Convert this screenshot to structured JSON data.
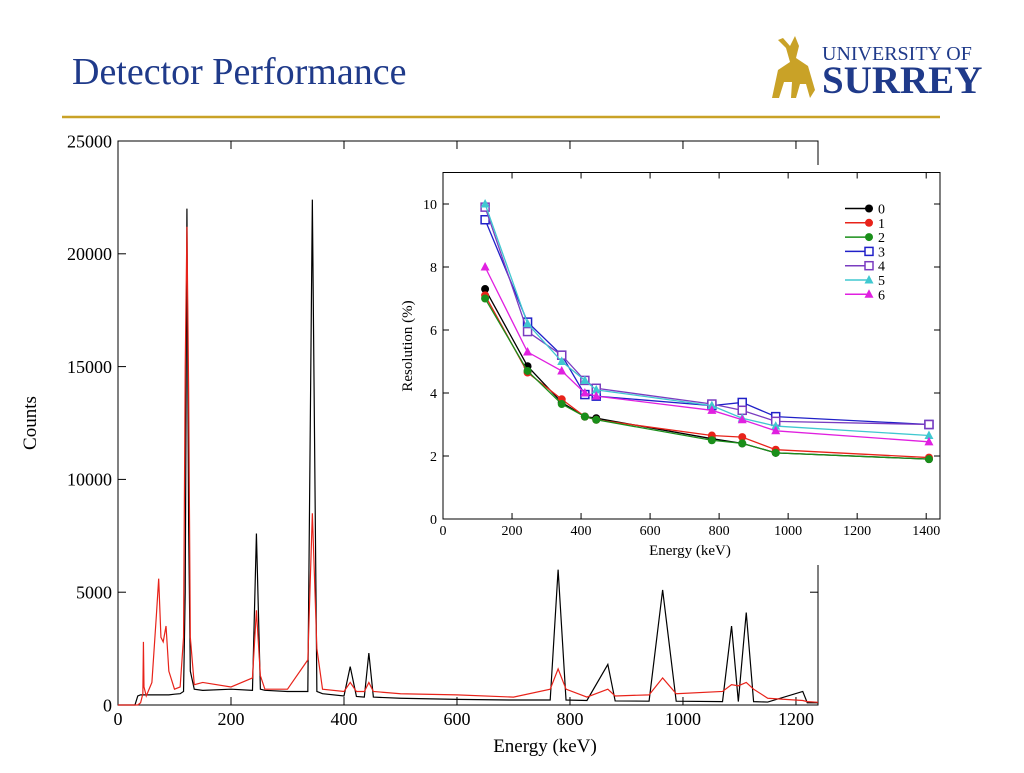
{
  "header": {
    "title": "Detector Performance",
    "logo_top": "UNIVERSITY OF",
    "logo_bottom": "SURREY"
  },
  "chart_data": [
    {
      "type": "line",
      "xlabel": "Energy (keV)",
      "ylabel": "Counts",
      "x": [
        0,
        30,
        35,
        40,
        44,
        45,
        46,
        50,
        60,
        68,
        72,
        76,
        80,
        85,
        90,
        100,
        110,
        116,
        119,
        122,
        125,
        128,
        135,
        150,
        200,
        238,
        245,
        252,
        260,
        300,
        336,
        344,
        352,
        362,
        400,
        411,
        422,
        436,
        444,
        452,
        500,
        600,
        700,
        765,
        779,
        793,
        830,
        867,
        880,
        940,
        964,
        988,
        1070,
        1086,
        1098,
        1112,
        1125,
        1150,
        1212,
        1220,
        1239
      ],
      "series": [
        {
          "color": "#000000",
          "values": [
            0,
            0,
            400,
            450,
            450,
            450,
            450,
            450,
            450,
            450,
            450,
            450,
            450,
            450,
            450,
            480,
            500,
            600,
            5000,
            22000,
            8000,
            1500,
            700,
            650,
            700,
            650,
            7600,
            700,
            650,
            600,
            600,
            22400,
            600,
            500,
            400,
            1700,
            380,
            350,
            2300,
            350,
            300,
            250,
            220,
            220,
            6000,
            220,
            200,
            1800,
            180,
            170,
            5100,
            170,
            150,
            3500,
            150,
            4100,
            150,
            130,
            600,
            100,
            100
          ]
        },
        {
          "color": "#e8231a",
          "values": [
            0,
            0,
            0,
            100,
            500,
            2800,
            800,
            400,
            1000,
            4000,
            5600,
            3000,
            2800,
            3500,
            1500,
            700,
            800,
            3000,
            15000,
            21200,
            14000,
            3000,
            900,
            1000,
            800,
            1200,
            4200,
            1300,
            700,
            700,
            2000,
            8500,
            2500,
            700,
            600,
            1000,
            600,
            600,
            1000,
            600,
            500,
            450,
            350,
            700,
            1600,
            700,
            350,
            700,
            400,
            450,
            1200,
            500,
            600,
            900,
            850,
            1000,
            700,
            300,
            200,
            150,
            120
          ]
        }
      ],
      "xlim": [
        0,
        1239
      ],
      "ylim": [
        0,
        25000
      ],
      "xticks": [
        0,
        200,
        400,
        600,
        800,
        1000,
        1200
      ],
      "yticks": [
        0,
        5000,
        10000,
        15000,
        20000,
        25000
      ]
    },
    {
      "type": "line",
      "xlabel": "Energy (keV)",
      "ylabel": "Resolution (%)",
      "x": [
        122,
        245,
        344,
        411,
        444,
        779,
        867,
        964,
        1408
      ],
      "series": [
        {
          "name": "0",
          "color": "#000000",
          "marker": "circle",
          "values": [
            7.3,
            4.85,
            3.7,
            3.25,
            3.2,
            2.55,
            2.4,
            2.1,
            1.9
          ]
        },
        {
          "name": "1",
          "color": "#e8231a",
          "marker": "circle",
          "values": [
            7.1,
            4.65,
            3.8,
            3.25,
            3.15,
            2.65,
            2.6,
            2.2,
            1.95
          ]
        },
        {
          "name": "2",
          "color": "#1a8f1a",
          "marker": "circle",
          "values": [
            7.0,
            4.7,
            3.65,
            3.25,
            3.15,
            2.5,
            2.4,
            2.1,
            1.9
          ]
        },
        {
          "name": "3",
          "color": "#2020c8",
          "marker": "square",
          "values": [
            9.5,
            6.25,
            5.2,
            3.95,
            3.9,
            3.6,
            3.7,
            3.25,
            3.0
          ]
        },
        {
          "name": "4",
          "color": "#7a3cc0",
          "marker": "square",
          "values": [
            9.9,
            5.95,
            5.2,
            4.4,
            4.15,
            3.65,
            3.45,
            3.1,
            3.0
          ]
        },
        {
          "name": "5",
          "color": "#40c8d0",
          "marker": "triangle",
          "values": [
            10.0,
            6.2,
            5.0,
            4.4,
            4.1,
            3.6,
            3.2,
            2.95,
            2.65
          ]
        },
        {
          "name": "6",
          "color": "#e020e0",
          "marker": "triangle",
          "values": [
            8.0,
            5.3,
            4.7,
            4.0,
            3.9,
            3.45,
            3.15,
            2.8,
            2.45
          ]
        }
      ],
      "xlim": [
        0,
        1440
      ],
      "ylim": [
        0,
        11
      ],
      "xticks": [
        0,
        200,
        400,
        600,
        800,
        1000,
        1200,
        1400
      ],
      "yticks": [
        0,
        2,
        4,
        6,
        8,
        10
      ],
      "legend": "upper right"
    }
  ]
}
